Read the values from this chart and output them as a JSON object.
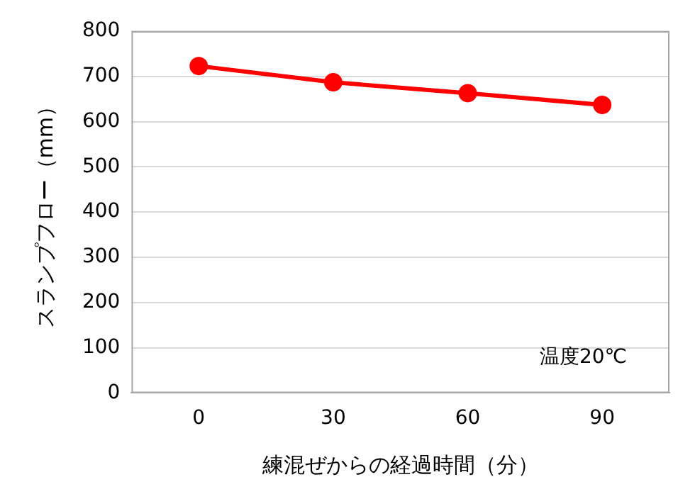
{
  "chart_data": {
    "type": "line",
    "xlabel": "練混ぜからの経過時間（分）",
    "ylabel": "スランプフロー（mm）",
    "categories": [
      "0",
      "30",
      "60",
      "90"
    ],
    "series": [
      {
        "color": "#ff0000",
        "values": [
          723,
          687,
          663,
          637
        ]
      }
    ],
    "ylim": [
      0,
      800
    ],
    "yticks": [
      0,
      100,
      200,
      300,
      400,
      500,
      600,
      700,
      800
    ],
    "grid": "y",
    "legend": false,
    "marker": "circle",
    "line_style": "solid",
    "annotations": [
      "温度20℃"
    ]
  }
}
